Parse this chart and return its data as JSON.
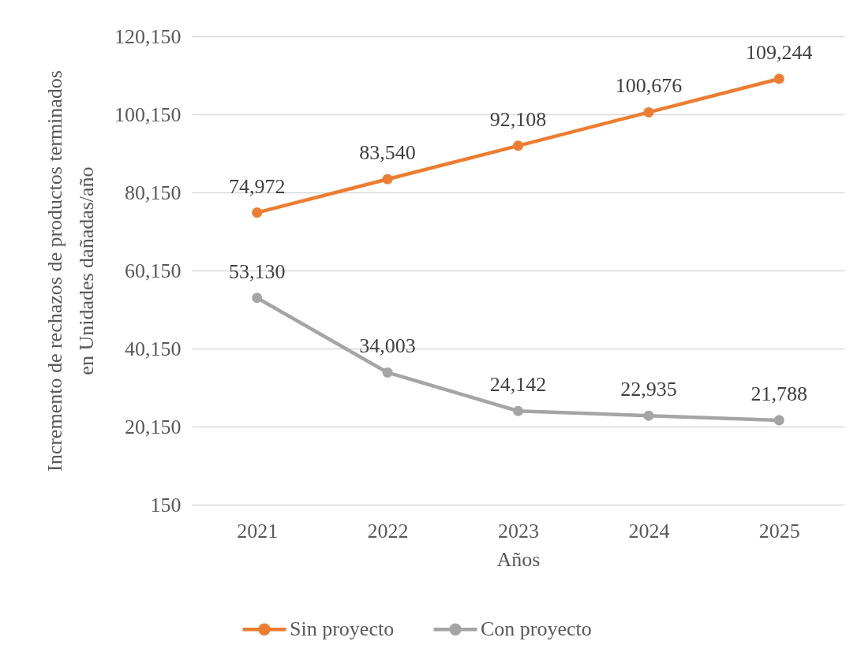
{
  "chart_data": {
    "type": "line",
    "xlabel": "Años",
    "ylabel": "Incremento de rechazos de productos terminados\nen Unidades dañadas/año",
    "categories": [
      "2021",
      "2022",
      "2023",
      "2024",
      "2025"
    ],
    "series": [
      {
        "name": "Sin proyecto",
        "color": "#ed7d31",
        "values": [
          74972,
          83540,
          92108,
          100676,
          109244
        ],
        "value_labels": [
          "74,972",
          "83,540",
          "92,108",
          "100,676",
          "109,244"
        ]
      },
      {
        "name": "Con proyecto",
        "color": "#a5a5a5",
        "values": [
          53130,
          34003,
          24142,
          22935,
          21788
        ],
        "value_labels": [
          "53,130",
          "34,003",
          "24,142",
          "22,935",
          "21,788"
        ]
      }
    ],
    "ylim": [
      150,
      120150
    ],
    "yticks": [
      150,
      {
        "value": 20150,
        "label": "20,150"
      },
      {
        "value": 40150,
        "label": "40,150"
      },
      {
        "value": 60150,
        "label": "60,150"
      },
      {
        "value": 80150,
        "label": "80,150"
      },
      {
        "value": 100150,
        "label": "100,150"
      },
      {
        "value": 120150,
        "label": "120,150"
      }
    ],
    "grid": "y",
    "legend": "bottom",
    "marker": "circle",
    "line_style": "solid"
  }
}
